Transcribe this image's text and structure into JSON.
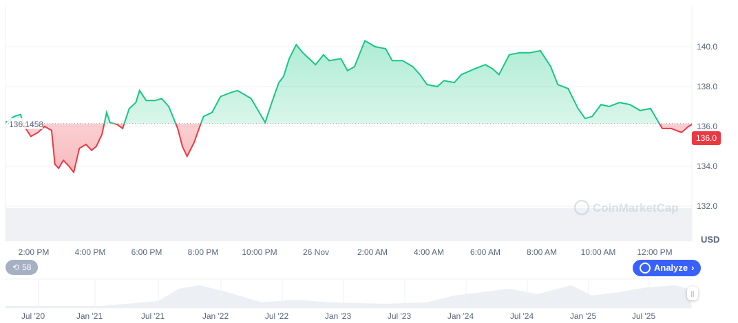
{
  "chart_data": {
    "type": "line",
    "currency_label": "USD",
    "ylim": [
      131.5,
      141.5
    ],
    "y_ticks": [
      "132.0",
      "134.0",
      "136.0",
      "138.0",
      "140.0"
    ],
    "x_ticks": [
      "2:00 PM",
      "4:00 PM",
      "6:00 PM",
      "8:00 PM",
      "10:00 PM",
      "26 Nov",
      "2:00 AM",
      "4:00 AM",
      "6:00 AM",
      "8:00 AM",
      "10:00 AM",
      "12:00 PM"
    ],
    "baseline": 136.1458,
    "baseline_label": "136.1458",
    "current_price_label": "136.0",
    "colors": {
      "up": "#16c784",
      "down": "#ea3943",
      "accent": "#3861fb"
    },
    "points": [
      [
        "13:00",
        136.2
      ],
      [
        "13:18",
        136.5
      ],
      [
        "13:32",
        136.6
      ],
      [
        "13:40",
        136.0
      ],
      [
        "13:54",
        135.5
      ],
      [
        "14:09",
        135.7
      ],
      [
        "14:23",
        136.0
      ],
      [
        "14:38",
        135.8
      ],
      [
        "14:45",
        134.1
      ],
      [
        "14:53",
        133.9
      ],
      [
        "15:03",
        134.3
      ],
      [
        "15:15",
        134.0
      ],
      [
        "15:25",
        133.7
      ],
      [
        "15:37",
        134.9
      ],
      [
        "15:51",
        135.1
      ],
      [
        "16:03",
        134.8
      ],
      [
        "16:13",
        135.0
      ],
      [
        "16:25",
        135.6
      ],
      [
        "16:35",
        136.7
      ],
      [
        "16:42",
        136.2
      ],
      [
        "16:57",
        136.1
      ],
      [
        "17:09",
        135.9
      ],
      [
        "17:23",
        136.9
      ],
      [
        "17:37",
        137.2
      ],
      [
        "17:45",
        137.8
      ],
      [
        "17:59",
        137.3
      ],
      [
        "18:18",
        137.3
      ],
      [
        "18:32",
        137.4
      ],
      [
        "18:47",
        137.0
      ],
      [
        "19:06",
        135.9
      ],
      [
        "19:16",
        135.0
      ],
      [
        "19:26",
        134.5
      ],
      [
        "19:41",
        135.2
      ],
      [
        "19:53",
        136.0
      ],
      [
        "20:01",
        136.5
      ],
      [
        "20:19",
        136.7
      ],
      [
        "20:37",
        137.5
      ],
      [
        "20:59",
        137.7
      ],
      [
        "21:13",
        137.8
      ],
      [
        "21:28",
        137.6
      ],
      [
        "21:42",
        137.4
      ],
      [
        "21:57",
        136.8
      ],
      [
        "22:12",
        136.2
      ],
      [
        "22:26",
        137.2
      ],
      [
        "22:41",
        138.2
      ],
      [
        "22:51",
        138.5
      ],
      [
        "23:03",
        139.4
      ],
      [
        "23:18",
        140.1
      ],
      [
        "23:32",
        139.7
      ],
      [
        "23:59",
        139.1
      ],
      [
        "00:16",
        139.6
      ],
      [
        "00:28",
        139.3
      ],
      [
        "00:53",
        139.4
      ],
      [
        "01:07",
        138.8
      ],
      [
        "01:22",
        139.0
      ],
      [
        "01:32",
        139.6
      ],
      [
        "01:44",
        140.3
      ],
      [
        "02:06",
        140.0
      ],
      [
        "02:28",
        139.9
      ],
      [
        "02:42",
        139.3
      ],
      [
        "03:04",
        139.3
      ],
      [
        "03:26",
        139.0
      ],
      [
        "03:41",
        138.6
      ],
      [
        "03:56",
        138.1
      ],
      [
        "04:18",
        138.0
      ],
      [
        "04:32",
        138.3
      ],
      [
        "04:54",
        138.2
      ],
      [
        "05:09",
        138.6
      ],
      [
        "05:38",
        138.9
      ],
      [
        "06:00",
        139.1
      ],
      [
        "06:15",
        138.9
      ],
      [
        "06:29",
        138.6
      ],
      [
        "06:51",
        139.6
      ],
      [
        "07:13",
        139.7
      ],
      [
        "07:35",
        139.7
      ],
      [
        "07:57",
        139.8
      ],
      [
        "08:19",
        139.0
      ],
      [
        "08:34",
        138.1
      ],
      [
        "08:56",
        137.9
      ],
      [
        "09:17",
        136.9
      ],
      [
        "09:32",
        136.4
      ],
      [
        "09:47",
        136.5
      ],
      [
        "10:06",
        137.1
      ],
      [
        "10:23",
        137.0
      ],
      [
        "10:45",
        137.2
      ],
      [
        "11:07",
        137.1
      ],
      [
        "11:29",
        136.8
      ],
      [
        "11:51",
        136.9
      ],
      [
        "12:06",
        136.3
      ],
      [
        "12:16",
        135.9
      ],
      [
        "12:35",
        135.9
      ],
      [
        "12:57",
        135.7
      ],
      [
        "13:12",
        136.0
      ],
      [
        "13:19",
        136.1
      ]
    ],
    "navigator_ticks": [
      "Jul '20",
      "Jan '21",
      "Jul '21",
      "Jan '22",
      "Jul '22",
      "Jan '23",
      "Jul '23",
      "Jan '24",
      "Jul '24",
      "Jan '25",
      "Jul '25"
    ]
  },
  "watermark": "CoinMarketCap",
  "badges": {
    "history_count": "58",
    "history_icon": "clock-history-icon",
    "analyze_label": "Analyze",
    "analyze_icon": "coinmarketcap-logo-icon"
  }
}
